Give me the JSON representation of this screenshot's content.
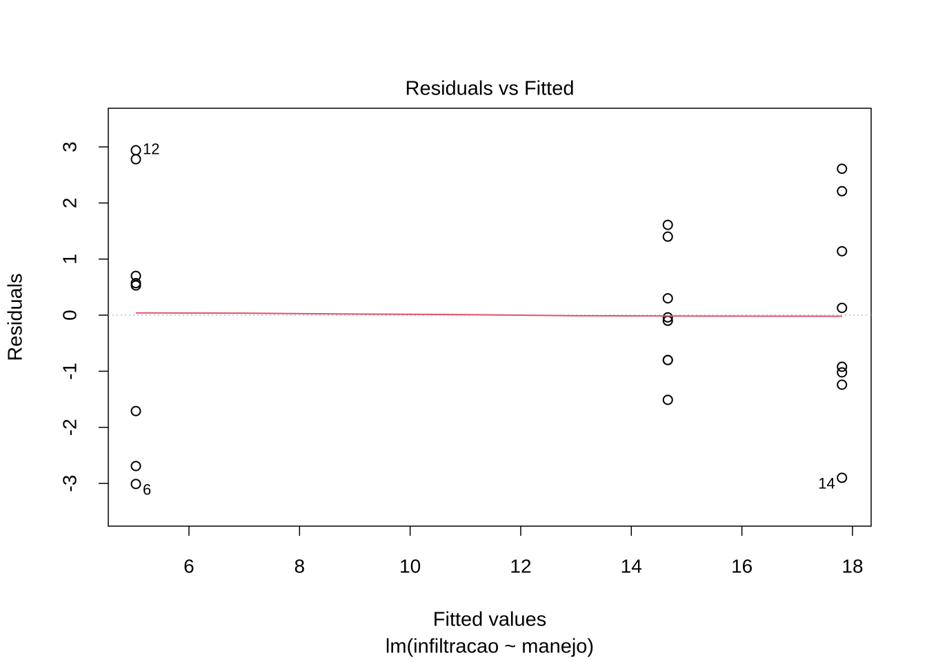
{
  "chart_data": {
    "type": "scatter",
    "title": "Residuals vs Fitted",
    "x_label": "Fitted values",
    "subtitle": "lm(infiltracao ~ manejo)",
    "y_label": "Residuals",
    "series": [
      {
        "type": "scatter",
        "color": "#000000",
        "x": [
          5.04,
          5.04,
          5.04,
          5.04,
          5.04,
          5.04,
          5.04,
          5.04,
          14.66,
          14.66,
          14.66,
          14.66,
          14.66,
          14.66,
          14.66,
          14.66,
          17.81,
          17.81,
          17.81,
          17.81,
          17.81,
          17.81,
          17.81,
          17.81
        ],
        "values": [
          2.94,
          2.78,
          0.7,
          0.57,
          0.53,
          -1.71,
          -2.69,
          -3.01,
          1.61,
          1.4,
          0.3,
          -0.04,
          -0.1,
          -0.8,
          -0.8,
          -1.51,
          2.61,
          2.21,
          1.14,
          0.13,
          -0.92,
          -1.02,
          -1.24,
          -2.9
        ]
      },
      {
        "type": "line",
        "color": "#df536b",
        "x": [
          5.04,
          7.0,
          9.0,
          11.0,
          13.0,
          14.66,
          17.81
        ],
        "values": [
          0.04,
          0.035,
          0.02,
          0.01,
          -0.01,
          -0.015,
          -0.02
        ]
      }
    ],
    "hline": {
      "value": 0,
      "color": "#bebebe"
    },
    "annotations": [
      {
        "text": "12",
        "x": 5.04,
        "y": 2.94
      },
      {
        "text": "6",
        "x": 5.04,
        "y": -3.01
      },
      {
        "text": "14",
        "x": 17.81,
        "y": -2.9
      }
    ],
    "xlim": [
      4.541,
      18.337
    ],
    "ylim": [
      -3.762,
      3.689
    ],
    "xticks": [
      6,
      8,
      10,
      12,
      14,
      16,
      18
    ],
    "yticks": [
      -3,
      -2,
      -1,
      0,
      1,
      2,
      3
    ]
  }
}
